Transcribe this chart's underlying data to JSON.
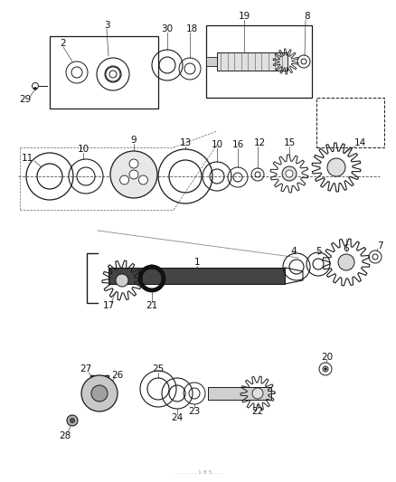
{
  "bg_color": "#ffffff",
  "lc": "#1a1a1a",
  "figsize": [
    4.38,
    5.33
  ],
  "dpi": 100,
  "label_fs": 7.5,
  "label_color": "#111111"
}
